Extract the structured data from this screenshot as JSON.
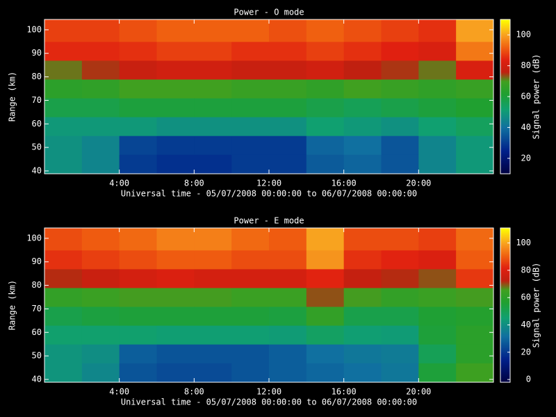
{
  "chart_data": [
    {
      "type": "heatmap",
      "title": "Power - O mode",
      "xlabel": "Universal time - 05/07/2008 00:00:00 to 06/07/2008 00:00:00",
      "ylabel": "Range (km)",
      "xlim": [
        0,
        24
      ],
      "xticks": [
        {
          "value": 4,
          "label": "4:00"
        },
        {
          "value": 8,
          "label": "8:00"
        },
        {
          "value": 12,
          "label": "12:00"
        },
        {
          "value": 16,
          "label": "16:00"
        },
        {
          "value": 20,
          "label": "20:00"
        }
      ],
      "ylim": [
        38.8,
        104.4
      ],
      "yticks": [
        40,
        50,
        60,
        70,
        80,
        90,
        100
      ],
      "x": [
        0,
        2,
        4,
        6,
        8,
        10,
        12,
        14,
        16,
        18,
        20,
        22,
        24
      ],
      "y": [
        38.8,
        47,
        55,
        63,
        71,
        79,
        87,
        95,
        104.4
      ],
      "values": [
        [
          48,
          45,
          30,
          28,
          28,
          30,
          30,
          36,
          38,
          35,
          45,
          50
        ],
        [
          48,
          45,
          32,
          30,
          30,
          30,
          30,
          38,
          40,
          35,
          45,
          50
        ],
        [
          50,
          50,
          50,
          48,
          48,
          48,
          48,
          52,
          50,
          48,
          52,
          55
        ],
        [
          58,
          58,
          60,
          60,
          60,
          60,
          60,
          58,
          56,
          58,
          60,
          62
        ],
        [
          65,
          66,
          70,
          70,
          70,
          68,
          68,
          66,
          70,
          68,
          66,
          68
        ],
        [
          72,
          75,
          78,
          80,
          80,
          78,
          78,
          80,
          76,
          75,
          72,
          82
        ],
        [
          85,
          85,
          86,
          88,
          88,
          86,
          86,
          88,
          86,
          84,
          82,
          95
        ],
        [
          88,
          88,
          90,
          92,
          92,
          92,
          90,
          92,
          90,
          88,
          86,
          100
        ]
      ],
      "colorbar": {
        "label": "Signal power (dB)",
        "clim": [
          10,
          110
        ],
        "ticks": [
          20,
          40,
          60,
          80,
          100
        ]
      },
      "colorscale": [
        [
          0,
          "#000040"
        ],
        [
          0.15,
          "#00208a"
        ],
        [
          0.3,
          "#1070a0"
        ],
        [
          0.42,
          "#10a070"
        ],
        [
          0.52,
          "#20a030"
        ],
        [
          0.6,
          "#40a020"
        ],
        [
          0.66,
          "#c02010"
        ],
        [
          0.74,
          "#e02010"
        ],
        [
          0.82,
          "#f06010"
        ],
        [
          0.9,
          "#f8a020"
        ],
        [
          1,
          "#ffff00"
        ]
      ]
    },
    {
      "type": "heatmap",
      "title": "Power - E mode",
      "xlabel": "Universal time - 05/07/2008 00:00:00 to 06/07/2008 00:00:00",
      "ylabel": "Range (km)",
      "xlim": [
        0,
        24
      ],
      "xticks": [
        {
          "value": 4,
          "label": "4:00"
        },
        {
          "value": 8,
          "label": "8:00"
        },
        {
          "value": 12,
          "label": "12:00"
        },
        {
          "value": 16,
          "label": "16:00"
        },
        {
          "value": 20,
          "label": "20:00"
        }
      ],
      "ylim": [
        38.8,
        104.4
      ],
      "yticks": [
        40,
        50,
        60,
        70,
        80,
        90,
        100
      ],
      "x": [
        0,
        2,
        4,
        6,
        8,
        10,
        12,
        14,
        16,
        18,
        20,
        22,
        24
      ],
      "y": [
        38.8,
        47,
        55,
        63,
        71,
        79,
        87,
        95,
        104.4
      ],
      "values": [
        [
          42,
          38,
          26,
          24,
          24,
          26,
          28,
          30,
          32,
          34,
          55,
          65
        ],
        [
          42,
          40,
          28,
          26,
          26,
          26,
          28,
          32,
          34,
          35,
          50,
          60
        ],
        [
          46,
          46,
          46,
          45,
          45,
          45,
          44,
          48,
          45,
          44,
          55,
          60
        ],
        [
          52,
          54,
          55,
          55,
          55,
          55,
          54,
          62,
          52,
          52,
          56,
          58
        ],
        [
          62,
          64,
          66,
          66,
          66,
          64,
          64,
          70,
          66,
          62,
          64,
          66
        ],
        [
          72,
          75,
          78,
          80,
          78,
          78,
          78,
          82,
          74,
          72,
          70,
          85
        ],
        [
          84,
          86,
          88,
          90,
          90,
          88,
          88,
          98,
          84,
          82,
          80,
          90
        ],
        [
          88,
          90,
          92,
          95,
          95,
          92,
          90,
          100,
          88,
          88,
          86,
          92
        ]
      ],
      "colorbar": {
        "label": "Signal power (dB)",
        "clim": [
          -2,
          111
        ],
        "ticks": [
          0,
          20,
          40,
          60,
          80,
          100
        ]
      },
      "colorscale": [
        [
          0,
          "#000040"
        ],
        [
          0.15,
          "#00208a"
        ],
        [
          0.3,
          "#1070a0"
        ],
        [
          0.42,
          "#10a070"
        ],
        [
          0.52,
          "#20a030"
        ],
        [
          0.6,
          "#40a020"
        ],
        [
          0.66,
          "#c02010"
        ],
        [
          0.74,
          "#e02010"
        ],
        [
          0.82,
          "#f06010"
        ],
        [
          0.9,
          "#f8a020"
        ],
        [
          1,
          "#ffff00"
        ]
      ]
    }
  ]
}
